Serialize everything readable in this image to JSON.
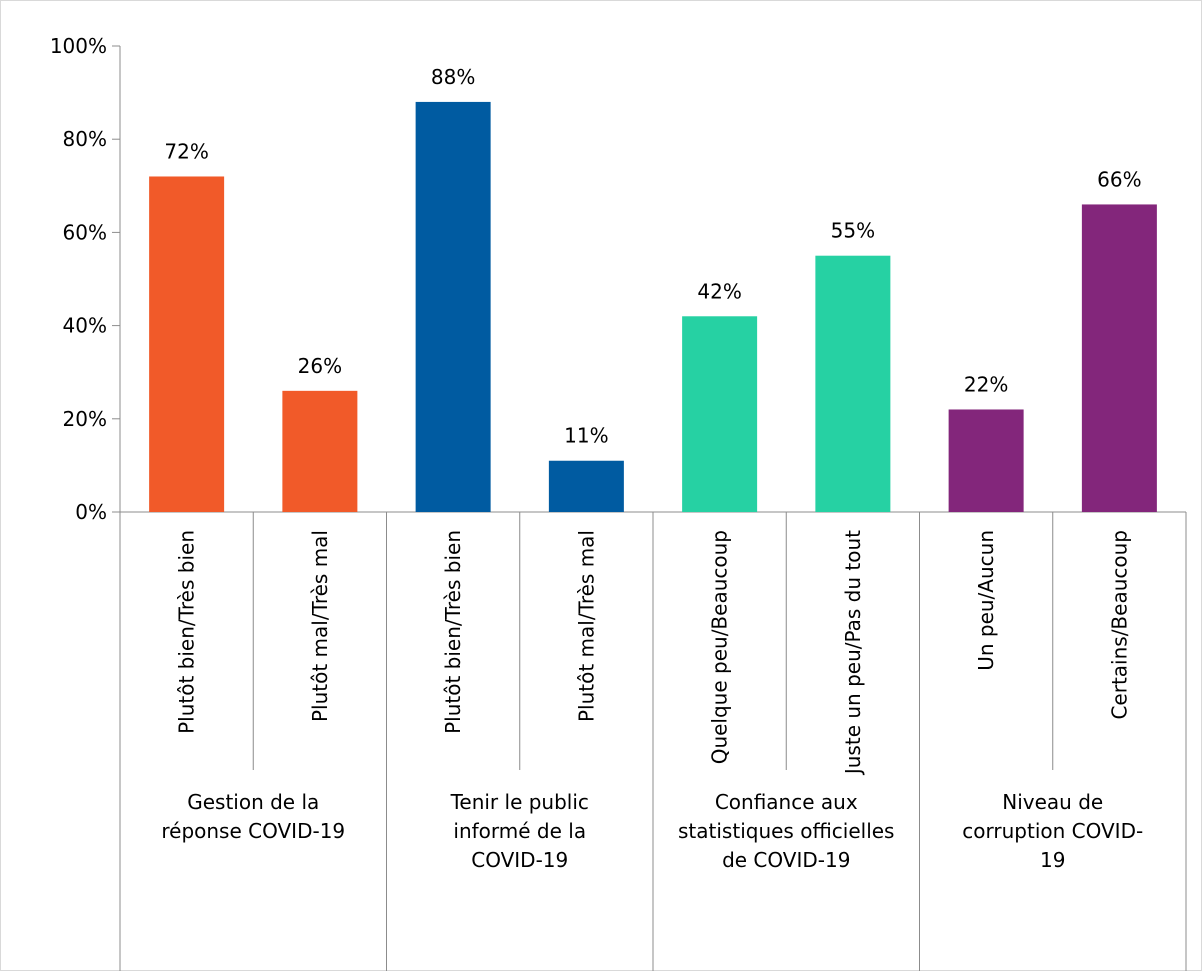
{
  "chart_data": {
    "type": "bar",
    "ylim": [
      0,
      100
    ],
    "y_ticks": [
      "0%",
      "20%",
      "40%",
      "60%",
      "80%",
      "100%"
    ],
    "y_tick_values": [
      0,
      20,
      40,
      60,
      80,
      100
    ],
    "grid": false,
    "legend": "none",
    "groups": [
      {
        "label": [
          "Gestion de la",
          "réponse COVID-19"
        ],
        "color": "#F15A29",
        "bars": [
          {
            "label": "Plutôt bien/Très bien",
            "value": 72,
            "value_label": "72%"
          },
          {
            "label": "Plutôt mal/Très mal",
            "value": 26,
            "value_label": "26%"
          }
        ]
      },
      {
        "label": [
          "Tenir le public",
          "informé de la",
          "COVID-19"
        ],
        "color": "#005BA1",
        "bars": [
          {
            "label": "Plutôt bien/Très bien",
            "value": 88,
            "value_label": "88%"
          },
          {
            "label": "Plutôt mal/Très mal",
            "value": 11,
            "value_label": "11%"
          }
        ]
      },
      {
        "label": [
          "Confiance aux",
          "statistiques officielles",
          "de COVID-19"
        ],
        "color": "#26D1A3",
        "bars": [
          {
            "label": "Quelque peu/Beaucoup",
            "value": 42,
            "value_label": "42%"
          },
          {
            "label": "Juste un peu/Pas du tout",
            "value": 55,
            "value_label": "55%"
          }
        ]
      },
      {
        "label": [
          "Niveau de",
          "corruption COVID-",
          "19"
        ],
        "color": "#83267B",
        "bars": [
          {
            "label": "Un peu/Aucun",
            "value": 22,
            "value_label": "22%"
          },
          {
            "label": "Certains/Beaucoup",
            "value": 66,
            "value_label": "66%"
          }
        ]
      }
    ]
  }
}
